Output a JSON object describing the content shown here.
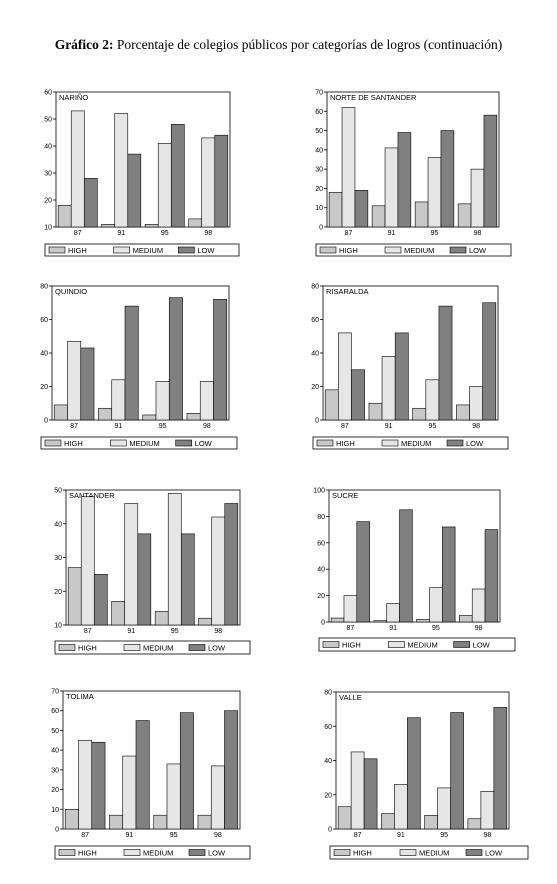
{
  "page": {
    "title_bold": "Gráfico 2:",
    "title_rest": " Porcentaje de colegios públicos por categorías de logros (continuación)"
  },
  "colors": {
    "HIGH": "#c8c8c8",
    "MEDIUM": "#e6e6e6",
    "LOW": "#808080"
  },
  "chart_data": [
    {
      "type": "bar",
      "title": "NARIÑO",
      "categories": [
        "87",
        "91",
        "95",
        "98"
      ],
      "ylim": [
        10,
        60
      ],
      "yticks": [
        10,
        20,
        30,
        40,
        50,
        60
      ],
      "series": [
        {
          "name": "HIGH",
          "values": [
            18,
            11,
            11,
            13
          ]
        },
        {
          "name": "MEDIUM",
          "values": [
            53,
            52,
            41,
            43
          ]
        },
        {
          "name": "LOW",
          "values": [
            28,
            37,
            48,
            44
          ]
        }
      ],
      "legend": "bottom"
    },
    {
      "type": "bar",
      "title": "NORTE DE SANTANDER",
      "categories": [
        "87",
        "91",
        "95",
        "98"
      ],
      "ylim": [
        0,
        70
      ],
      "yticks": [
        0,
        10,
        20,
        30,
        40,
        50,
        60,
        70
      ],
      "series": [
        {
          "name": "HIGH",
          "values": [
            18,
            11,
            13,
            12
          ]
        },
        {
          "name": "MEDIUM",
          "values": [
            62,
            41,
            36,
            30
          ]
        },
        {
          "name": "LOW",
          "values": [
            19,
            49,
            50,
            58
          ]
        }
      ],
      "legend": "bottom"
    },
    {
      "type": "bar",
      "title": "QUINDIO",
      "categories": [
        "87",
        "91",
        "95",
        "98"
      ],
      "ylim": [
        0,
        80
      ],
      "yticks": [
        0,
        20,
        40,
        60,
        80
      ],
      "series": [
        {
          "name": "HIGH",
          "values": [
            9,
            7,
            3,
            4
          ]
        },
        {
          "name": "MEDIUM",
          "values": [
            47,
            24,
            23,
            23
          ]
        },
        {
          "name": "LOW",
          "values": [
            43,
            68,
            73,
            72
          ]
        }
      ],
      "legend": "bottom"
    },
    {
      "type": "bar",
      "title": "RISARALDA",
      "categories": [
        "87",
        "91",
        "95",
        "98"
      ],
      "ylim": [
        0,
        80
      ],
      "yticks": [
        0,
        20,
        40,
        60,
        80
      ],
      "series": [
        {
          "name": "HIGH",
          "values": [
            18,
            10,
            7,
            9
          ]
        },
        {
          "name": "MEDIUM",
          "values": [
            52,
            38,
            24,
            20
          ]
        },
        {
          "name": "LOW",
          "values": [
            30,
            52,
            68,
            70
          ]
        }
      ],
      "legend": "bottom"
    },
    {
      "type": "bar",
      "title": "SANTANDER",
      "categories": [
        "87",
        "91",
        "95",
        "98"
      ],
      "ylim": [
        10,
        50
      ],
      "yticks": [
        10,
        20,
        30,
        40,
        50
      ],
      "series": [
        {
          "name": "HIGH",
          "values": [
            27,
            17,
            14,
            12
          ]
        },
        {
          "name": "MEDIUM",
          "values": [
            48,
            46,
            49,
            42
          ]
        },
        {
          "name": "LOW",
          "values": [
            25,
            37,
            37,
            46
          ]
        }
      ],
      "legend": "bottom"
    },
    {
      "type": "bar",
      "title": "SUCRE",
      "categories": [
        "87",
        "91",
        "95",
        "98"
      ],
      "ylim": [
        0,
        100
      ],
      "yticks": [
        0,
        20,
        40,
        60,
        80,
        100
      ],
      "series": [
        {
          "name": "HIGH",
          "values": [
            3,
            1,
            2,
            5
          ]
        },
        {
          "name": "MEDIUM",
          "values": [
            20,
            14,
            26,
            25
          ]
        },
        {
          "name": "LOW",
          "values": [
            76,
            85,
            72,
            70
          ]
        }
      ],
      "legend": "bottom"
    },
    {
      "type": "bar",
      "title": "TOLIMA",
      "categories": [
        "87",
        "91",
        "95",
        "98"
      ],
      "ylim": [
        0,
        70
      ],
      "yticks": [
        0,
        10,
        20,
        30,
        40,
        50,
        60,
        70
      ],
      "series": [
        {
          "name": "HIGH",
          "values": [
            10,
            7,
            7,
            7
          ]
        },
        {
          "name": "MEDIUM",
          "values": [
            45,
            37,
            33,
            32
          ]
        },
        {
          "name": "LOW",
          "values": [
            44,
            55,
            59,
            60
          ]
        }
      ],
      "legend": "bottom"
    },
    {
      "type": "bar",
      "title": "VALLE",
      "categories": [
        "87",
        "91",
        "95",
        "98"
      ],
      "ylim": [
        0,
        80
      ],
      "yticks": [
        0,
        20,
        40,
        60,
        80
      ],
      "series": [
        {
          "name": "HIGH",
          "values": [
            13,
            9,
            8,
            6
          ]
        },
        {
          "name": "MEDIUM",
          "values": [
            45,
            26,
            24,
            22
          ]
        },
        {
          "name": "LOW",
          "values": [
            41,
            65,
            68,
            71
          ]
        }
      ],
      "legend": "bottom"
    }
  ]
}
